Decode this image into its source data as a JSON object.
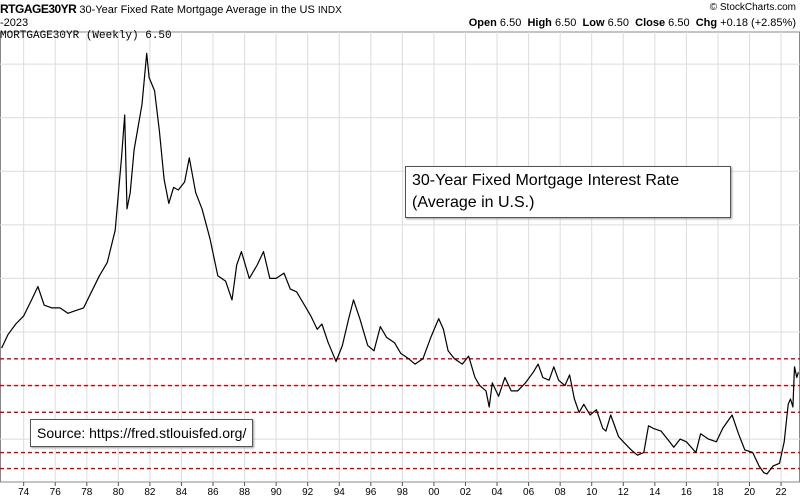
{
  "header": {
    "symbol": "RTGAGE30YR",
    "description": "30-Year Fixed Rate Mortgage Average in the US",
    "exchange": "INDX",
    "date": "-2023",
    "credit": "© StockCharts.com",
    "open_label": "Open",
    "open": "6.50",
    "high_label": "High",
    "high": "6.50",
    "low_label": "Low",
    "low": "6.50",
    "close_label": "Close",
    "close": "6.50",
    "chg_label": "Chg",
    "chg": "+0.18 (+2.85%)",
    "legend": "MORTGAGE30YR (Weekly) 6.50"
  },
  "annotations": {
    "title_line1": "30-Year Fixed Mortgage Interest Rate",
    "title_line2": "(Average in U.S.)",
    "source": "Source: https://fred.stlouisfed.org/"
  },
  "colors": {
    "line": "#000000",
    "grid": "#dcdcdc",
    "reference": "#cc0000",
    "background": "#ffffff"
  },
  "chart_data": {
    "type": "line",
    "title": "",
    "xlabel": "",
    "ylabel": "",
    "x_tick_labels": [
      "74",
      "76",
      "78",
      "80",
      "82",
      "84",
      "86",
      "88",
      "90",
      "92",
      "94",
      "96",
      "98",
      "00",
      "02",
      "04",
      "06",
      "08",
      "10",
      "12",
      "14",
      "16",
      "18",
      "20",
      "22"
    ],
    "x_tick_years": [
      1974,
      1976,
      1978,
      1980,
      1982,
      1984,
      1986,
      1988,
      1990,
      1992,
      1994,
      1996,
      1998,
      2000,
      2002,
      2004,
      2006,
      2008,
      2010,
      2012,
      2014,
      2016,
      2018,
      2020,
      2022
    ],
    "x_range": [
      1972.5,
      2023.2
    ],
    "y_range": [
      2.4,
      19.2
    ],
    "grid": true,
    "reference_levels": [
      7.0,
      6.0,
      5.0,
      3.5,
      2.9
    ],
    "series": [
      {
        "name": "",
        "points": [
          [
            1972.6,
            7.4
          ],
          [
            1973.0,
            7.9
          ],
          [
            1973.5,
            8.3
          ],
          [
            1974.0,
            8.6
          ],
          [
            1974.5,
            9.2
          ],
          [
            1974.9,
            9.7
          ],
          [
            1975.3,
            9.0
          ],
          [
            1975.8,
            8.9
          ],
          [
            1976.3,
            8.9
          ],
          [
            1976.8,
            8.7
          ],
          [
            1977.3,
            8.8
          ],
          [
            1977.8,
            8.9
          ],
          [
            1978.3,
            9.5
          ],
          [
            1978.8,
            10.1
          ],
          [
            1979.3,
            10.6
          ],
          [
            1979.8,
            11.8
          ],
          [
            1980.2,
            14.5
          ],
          [
            1980.4,
            16.1
          ],
          [
            1980.55,
            12.6
          ],
          [
            1980.75,
            13.2
          ],
          [
            1981.0,
            14.8
          ],
          [
            1981.5,
            16.5
          ],
          [
            1981.8,
            18.4
          ],
          [
            1981.95,
            17.5
          ],
          [
            1982.3,
            17.0
          ],
          [
            1982.6,
            15.5
          ],
          [
            1982.9,
            13.7
          ],
          [
            1983.2,
            12.8
          ],
          [
            1983.5,
            13.4
          ],
          [
            1983.8,
            13.3
          ],
          [
            1984.2,
            13.6
          ],
          [
            1984.5,
            14.5
          ],
          [
            1984.9,
            13.2
          ],
          [
            1985.3,
            12.6
          ],
          [
            1985.8,
            11.5
          ],
          [
            1986.3,
            10.1
          ],
          [
            1986.8,
            9.9
          ],
          [
            1987.2,
            9.2
          ],
          [
            1987.5,
            10.5
          ],
          [
            1987.8,
            11.0
          ],
          [
            1988.3,
            10.0
          ],
          [
            1988.8,
            10.5
          ],
          [
            1989.2,
            11.0
          ],
          [
            1989.6,
            10.0
          ],
          [
            1990.0,
            10.0
          ],
          [
            1990.5,
            10.2
          ],
          [
            1990.9,
            9.6
          ],
          [
            1991.3,
            9.5
          ],
          [
            1991.8,
            9.0
          ],
          [
            1992.2,
            8.6
          ],
          [
            1992.6,
            8.1
          ],
          [
            1992.9,
            8.3
          ],
          [
            1993.3,
            7.6
          ],
          [
            1993.8,
            6.9
          ],
          [
            1994.2,
            7.5
          ],
          [
            1994.6,
            8.5
          ],
          [
            1994.9,
            9.2
          ],
          [
            1995.3,
            8.5
          ],
          [
            1995.8,
            7.5
          ],
          [
            1996.2,
            7.3
          ],
          [
            1996.6,
            8.2
          ],
          [
            1997.0,
            7.8
          ],
          [
            1997.5,
            7.6
          ],
          [
            1997.9,
            7.2
          ],
          [
            1998.4,
            7.0
          ],
          [
            1998.8,
            6.8
          ],
          [
            1999.3,
            7.0
          ],
          [
            1999.8,
            7.8
          ],
          [
            2000.3,
            8.5
          ],
          [
            2000.6,
            8.1
          ],
          [
            2000.9,
            7.3
          ],
          [
            2001.3,
            7.0
          ],
          [
            2001.8,
            6.8
          ],
          [
            2002.2,
            7.1
          ],
          [
            2002.6,
            6.3
          ],
          [
            2002.9,
            6.0
          ],
          [
            2003.3,
            5.8
          ],
          [
            2003.5,
            5.2
          ],
          [
            2003.7,
            6.1
          ],
          [
            2004.1,
            5.6
          ],
          [
            2004.5,
            6.3
          ],
          [
            2004.9,
            5.8
          ],
          [
            2005.3,
            5.8
          ],
          [
            2005.8,
            6.1
          ],
          [
            2006.3,
            6.5
          ],
          [
            2006.6,
            6.8
          ],
          [
            2006.9,
            6.3
          ],
          [
            2007.3,
            6.2
          ],
          [
            2007.6,
            6.7
          ],
          [
            2007.9,
            6.2
          ],
          [
            2008.3,
            6.0
          ],
          [
            2008.6,
            6.4
          ],
          [
            2008.9,
            5.5
          ],
          [
            2009.2,
            5.0
          ],
          [
            2009.5,
            5.3
          ],
          [
            2009.9,
            4.9
          ],
          [
            2010.3,
            5.1
          ],
          [
            2010.7,
            4.4
          ],
          [
            2010.9,
            4.3
          ],
          [
            2011.2,
            4.9
          ],
          [
            2011.7,
            4.1
          ],
          [
            2012.0,
            3.9
          ],
          [
            2012.5,
            3.6
          ],
          [
            2012.9,
            3.4
          ],
          [
            2013.3,
            3.5
          ],
          [
            2013.6,
            4.5
          ],
          [
            2013.9,
            4.4
          ],
          [
            2014.4,
            4.3
          ],
          [
            2014.8,
            4.0
          ],
          [
            2015.2,
            3.7
          ],
          [
            2015.6,
            4.0
          ],
          [
            2016.0,
            3.9
          ],
          [
            2016.6,
            3.5
          ],
          [
            2016.9,
            4.2
          ],
          [
            2017.4,
            4.0
          ],
          [
            2017.9,
            3.9
          ],
          [
            2018.3,
            4.4
          ],
          [
            2018.9,
            4.9
          ],
          [
            2019.3,
            4.2
          ],
          [
            2019.7,
            3.6
          ],
          [
            2020.2,
            3.5
          ],
          [
            2020.6,
            3.0
          ],
          [
            2020.9,
            2.75
          ],
          [
            2021.1,
            2.7
          ],
          [
            2021.5,
            3.0
          ],
          [
            2021.9,
            3.1
          ],
          [
            2022.2,
            3.9
          ],
          [
            2022.45,
            5.3
          ],
          [
            2022.6,
            5.5
          ],
          [
            2022.75,
            5.2
          ],
          [
            2022.85,
            6.7
          ],
          [
            2023.0,
            6.3
          ],
          [
            2023.1,
            6.5
          ]
        ]
      }
    ]
  }
}
